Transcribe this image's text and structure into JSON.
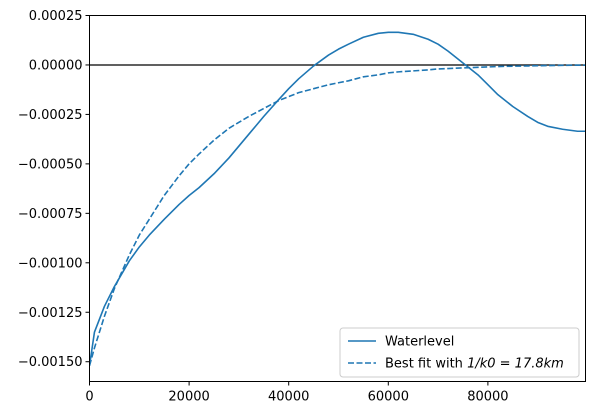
{
  "chart_data": {
    "type": "line",
    "title": "",
    "xlabel": "",
    "ylabel": "",
    "xlim": [
      0,
      99600
    ],
    "ylim": [
      -0.0016,
      0.00025
    ],
    "x_ticks": [
      0,
      20000,
      40000,
      60000,
      80000
    ],
    "x_tick_labels": [
      "0",
      "20000",
      "40000",
      "60000",
      "80000"
    ],
    "y_ticks": [
      0.00025,
      0.0,
      -0.00025,
      -0.0005,
      -0.00075,
      -0.001,
      -0.00125,
      -0.0015
    ],
    "y_tick_labels": [
      "0.00025",
      "0.00000",
      "−0.00025",
      "−0.00050",
      "−0.00075",
      "−0.00100",
      "−0.00125",
      "−0.00150"
    ],
    "reference_line_y": 0.0,
    "grid": false,
    "legend_position": "lower-right",
    "colors": {
      "series": "#1f77b4",
      "reference": "#000000",
      "axes": "#000000",
      "legend_border": "#cccccc"
    },
    "series": [
      {
        "name": "Waterlevel",
        "style": "solid",
        "x": [
          0,
          1000,
          3000,
          5000,
          8000,
          10000,
          12000,
          15000,
          18000,
          20000,
          22000,
          25000,
          28000,
          30000,
          32000,
          35000,
          38000,
          40000,
          42000,
          45000,
          48000,
          50000,
          52000,
          55000,
          58000,
          60000,
          62000,
          65000,
          68000,
          70000,
          72000,
          75000,
          78000,
          80000,
          82000,
          85000,
          88000,
          90000,
          92000,
          95000,
          98000,
          99600
        ],
        "y": [
          -0.00152,
          -0.00135,
          -0.00122,
          -0.00112,
          -0.00099,
          -0.00092,
          -0.00086,
          -0.00078,
          -0.000705,
          -0.00066,
          -0.00062,
          -0.00055,
          -0.00047,
          -0.00041,
          -0.00035,
          -0.00026,
          -0.000175,
          -0.00012,
          -7e-05,
          -5e-06,
          5e-05,
          8e-05,
          0.000105,
          0.00014,
          0.00016,
          0.000165,
          0.000165,
          0.000155,
          0.00013,
          0.000105,
          7e-05,
          1e-05,
          -5e-05,
          -0.0001,
          -0.00015,
          -0.00021,
          -0.00026,
          -0.00029,
          -0.00031,
          -0.000325,
          -0.000335,
          -0.000335
        ]
      },
      {
        "name": "Best fit with 1/k0 = 17.8km",
        "legend_text": "Best fit with ",
        "legend_math": "1/k0 = 17.8km",
        "style": "dashed",
        "x": [
          0,
          1000,
          3000,
          5000,
          8000,
          10000,
          12000,
          15000,
          18000,
          20000,
          22000,
          25000,
          28000,
          30000,
          32000,
          35000,
          38000,
          40000,
          42000,
          45000,
          48000,
          50000,
          52000,
          55000,
          58000,
          60000,
          62000,
          65000,
          68000,
          70000,
          72000,
          75000,
          78000,
          80000,
          82000,
          85000,
          88000,
          90000,
          92000,
          95000,
          98000,
          99600
        ],
        "y": [
          -0.00152,
          -0.00143,
          -0.00127,
          -0.00113,
          -0.00096,
          -0.00086,
          -0.00078,
          -0.00066,
          -0.00056,
          -0.0005,
          -0.00045,
          -0.00038,
          -0.00032,
          -0.00029,
          -0.00026,
          -0.00022,
          -0.00018,
          -0.00016,
          -0.00014,
          -0.00012,
          -0.0001,
          -9e-05,
          -8e-05,
          -6e-05,
          -5e-05,
          -4e-05,
          -3.5e-05,
          -3e-05,
          -2.5e-05,
          -2e-05,
          -1.8e-05,
          -1.5e-05,
          -1.2e-05,
          -1e-05,
          -8e-06,
          -6e-06,
          -5e-06,
          -4e-06,
          -3e-06,
          -2e-06,
          -1e-06,
          -1e-06
        ]
      }
    ]
  }
}
